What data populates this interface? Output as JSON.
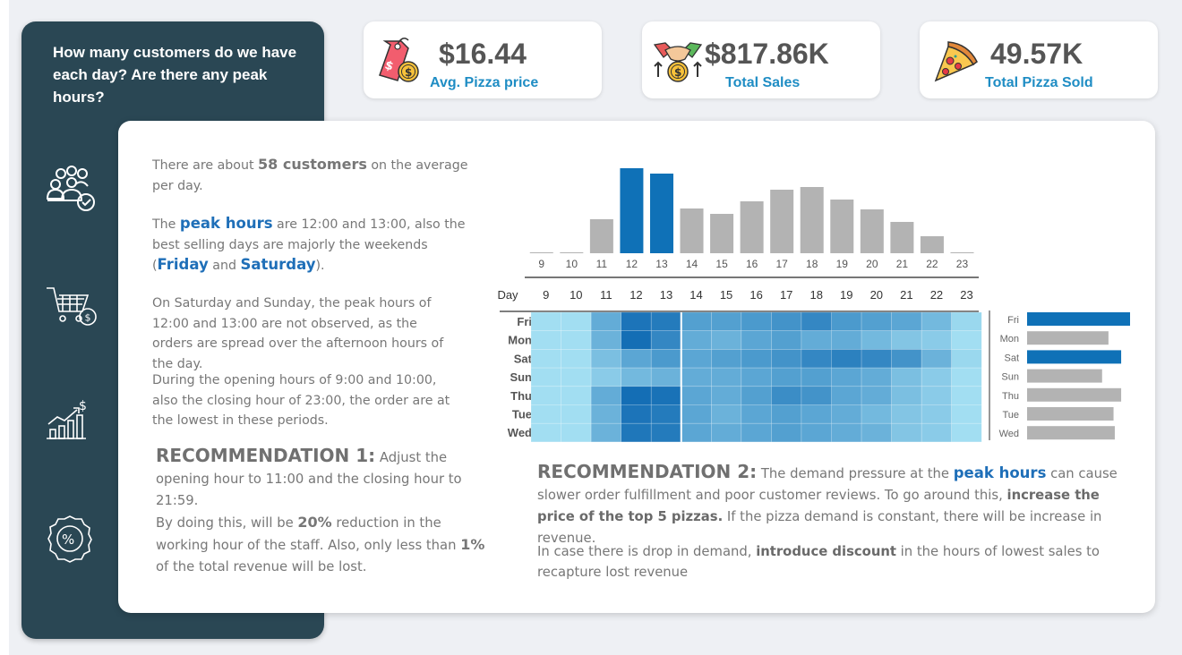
{
  "sidebar": {
    "question": "How many customers do we have each day? Are there any peak hours?",
    "icons": [
      "customers-icon",
      "shopping-cart-icon",
      "growth-chart-icon",
      "discount-badge-icon"
    ]
  },
  "kpis": [
    {
      "value": "$16.44",
      "label": "Avg. Pizza price",
      "icon": "price-tag-icon"
    },
    {
      "value": "$817.86K",
      "label": "Total Sales",
      "icon": "handshake-money-icon"
    },
    {
      "value": "49.57K",
      "label": "Total Pizza Sold",
      "icon": "pizza-slice-icon"
    }
  ],
  "left_text": {
    "p1_a": "There are about ",
    "p1_b": "58 customers",
    "p1_c": " on the average per day.",
    "p2_a": "The ",
    "p2_b": "peak hours",
    "p2_c": " are 12:00 and 13:00, also the best selling days are majorly the weekends (",
    "p2_d": "Friday",
    "p2_e": " and ",
    "p2_f": "Saturday",
    "p2_g": ").",
    "p3": "On Saturday and Sunday, the peak hours of 12:00 and 13:00 are not observed, as the orders are spread over the afternoon hours of the day.",
    "p4": "During the opening hours of 9:00 and 10:00, also the closing hour of 23:00, the order are at the lowest in these periods.",
    "rec1_head": "RECOMMENDATION 1:",
    "rec1_a": " Adjust the opening hour to 11:00 and the closing hour to 21:59.",
    "rec1_b": "By doing this, will be ",
    "rec1_c": "20%",
    "rec1_d": " reduction in the working hour of the staff. Also, only less than ",
    "rec1_e": "1%",
    "rec1_f": " of the total revenue will be lost."
  },
  "right_text": {
    "rec2_head": "RECOMMENDATION 2:",
    "rec2_a": " The demand pressure at the ",
    "rec2_b": "peak hours",
    "rec2_c": " can cause slower order fulfillment and poor customer reviews. To go around this, ",
    "rec2_d": "increase the price of the top 5 pizzas.",
    "rec2_e": " If the pizza demand is constant, there will be increase in revenue.",
    "p_a": "In case there is drop in demand, ",
    "p_b": "introduce discount",
    "p_c": " in the hours of lowest sales to recapture lost revenue"
  },
  "chart_data": [
    {
      "type": "bar",
      "categories": [
        "9",
        "10",
        "11",
        "12",
        "13",
        "14",
        "15",
        "16",
        "17",
        "18",
        "19",
        "20",
        "21",
        "22",
        "23"
      ],
      "values": [
        1,
        1,
        38,
        95,
        89,
        50,
        44,
        58,
        71,
        74,
        60,
        49,
        35,
        19,
        1
      ],
      "highlight": [
        "12",
        "13"
      ],
      "colors": {
        "default": "#b3b3b3",
        "highlight": "#0f71b7"
      }
    },
    {
      "type": "heatmap",
      "row_header": "Day",
      "x": [
        "9",
        "10",
        "11",
        "12",
        "13",
        "14",
        "15",
        "16",
        "17",
        "18",
        "19",
        "20",
        "21",
        "22",
        "23"
      ],
      "y": [
        "Fri",
        "Mon",
        "Sat",
        "Sun",
        "Thu",
        "Tue",
        "Wed"
      ],
      "values": [
        [
          0.05,
          0.05,
          0.45,
          0.9,
          0.85,
          0.55,
          0.55,
          0.6,
          0.65,
          0.75,
          0.6,
          0.55,
          0.5,
          0.35,
          0.1
        ],
        [
          0.05,
          0.05,
          0.4,
          0.95,
          0.75,
          0.45,
          0.4,
          0.5,
          0.55,
          0.45,
          0.45,
          0.35,
          0.25,
          0.2,
          0.05
        ],
        [
          0.05,
          0.05,
          0.3,
          0.5,
          0.6,
          0.5,
          0.55,
          0.6,
          0.65,
          0.75,
          0.8,
          0.75,
          0.65,
          0.4,
          0.1
        ],
        [
          0.05,
          0.05,
          0.2,
          0.35,
          0.4,
          0.45,
          0.45,
          0.5,
          0.55,
          0.55,
          0.5,
          0.45,
          0.3,
          0.2,
          0.05
        ],
        [
          0.05,
          0.05,
          0.45,
          0.95,
          0.92,
          0.5,
          0.45,
          0.55,
          0.7,
          0.65,
          0.5,
          0.45,
          0.3,
          0.2,
          0.05
        ],
        [
          0.05,
          0.05,
          0.4,
          0.9,
          0.85,
          0.5,
          0.4,
          0.5,
          0.55,
          0.5,
          0.45,
          0.35,
          0.25,
          0.2,
          0.05
        ],
        [
          0.05,
          0.05,
          0.4,
          0.88,
          0.85,
          0.5,
          0.45,
          0.5,
          0.55,
          0.5,
          0.45,
          0.4,
          0.25,
          0.2,
          0.05
        ]
      ]
    },
    {
      "type": "bar",
      "orientation": "horizontal",
      "categories": [
        "Fri",
        "Mon",
        "Sat",
        "Sun",
        "Thu",
        "Tue",
        "Wed"
      ],
      "values": [
        8.1,
        6.4,
        7.4,
        5.9,
        7.4,
        6.8,
        6.9
      ],
      "highlight": [
        "Fri",
        "Sat"
      ],
      "colors": {
        "default": "#b3b3b3",
        "highlight": "#0f71b7"
      }
    }
  ]
}
